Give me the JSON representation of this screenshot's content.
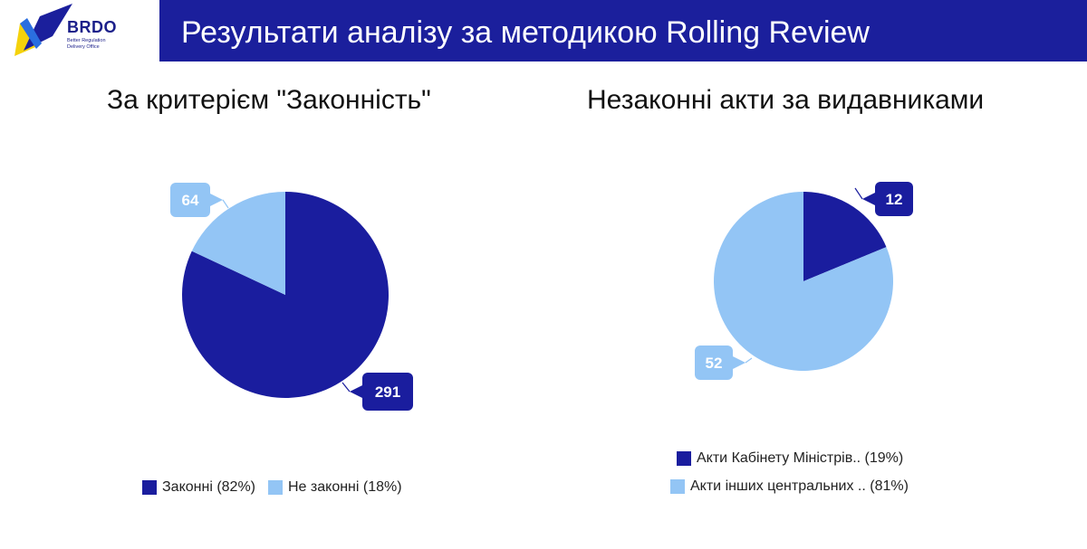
{
  "header": {
    "logo_text": "BRDO",
    "logo_subtitle": "Better Regulation Delivery Office",
    "title": "Результати аналізу за методикою Rolling Review"
  },
  "colors": {
    "header_bg": "#1b1f9c",
    "dark_blue": "#1a1d9e",
    "light_blue": "#93c5f5",
    "logo_yellow": "#f5d20b"
  },
  "chart_data": [
    {
      "type": "pie",
      "title": "За критерієм \"Законність\"",
      "slices": [
        {
          "label": "Законні (82%)",
          "value": 291,
          "color": "#1a1d9e"
        },
        {
          "label": "Не законні (18%)",
          "value": 64,
          "color": "#93c5f5"
        }
      ],
      "legend": "bottom"
    },
    {
      "type": "pie",
      "title": "Незаконні акти за видавниками",
      "slices": [
        {
          "label": "Акти Кабінету Міністрів.. (19%)",
          "value": 12,
          "color": "#1a1d9e"
        },
        {
          "label": "Акти інших центральних .. (81%)",
          "value": 52,
          "color": "#93c5f5"
        }
      ],
      "legend": "bottom"
    }
  ]
}
